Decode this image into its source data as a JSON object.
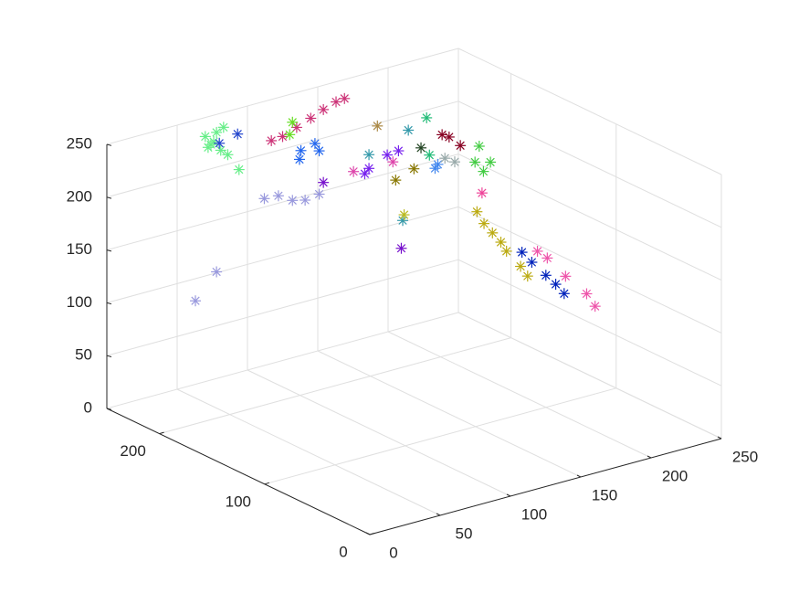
{
  "chart_data": {
    "type": "scatter3d",
    "xlim": [
      0,
      250
    ],
    "ylim": [
      0,
      250
    ],
    "zlim": [
      0,
      250
    ],
    "xticks": [
      0,
      50,
      100,
      150,
      200,
      250
    ],
    "yticks": [
      0,
      100,
      200
    ],
    "zticks": [
      0,
      50,
      100,
      150,
      200,
      250
    ],
    "grid": true,
    "series": [
      {
        "color": "#66ee88",
        "x": [
          70,
          74,
          78,
          83,
          72,
          76,
          81,
          86,
          94
        ],
        "y": [
          250,
          250,
          250,
          250,
          250,
          250,
          250,
          250,
          250
        ],
        "z": [
          232,
          223,
          233,
          236,
          221,
          225,
          215,
          209,
          192
        ]
      },
      {
        "color": "#2244cc",
        "x": [
          80,
          93
        ],
        "y": [
          250,
          250
        ],
        "z": [
          222,
          226
        ]
      },
      {
        "color": "#cc3377",
        "x": [
          117,
          125,
          135,
          145,
          154,
          163,
          169
        ],
        "y": [
          250,
          250,
          250,
          250,
          250,
          250,
          250
        ],
        "z": [
          211,
          212,
          217,
          222,
          227,
          231,
          232
        ]
      },
      {
        "color": "#66dd22",
        "x": [
          132,
          130
        ],
        "y": [
          250,
          250
        ],
        "z": [
          223,
          212
        ]
      },
      {
        "color": "#2266ee",
        "x": [
          148,
          138,
          151,
          137
        ],
        "y": [
          250,
          250,
          250,
          250
        ],
        "z": [
          197,
          194,
          189,
          186
        ]
      },
      {
        "color": "#9999dd",
        "x": [
          112,
          122,
          132,
          141,
          151,
          63,
          78
        ],
        "y": [
          250,
          250,
          250,
          250,
          250,
          250,
          250
        ],
        "z": [
          158,
          157,
          149,
          146,
          148,
          79,
          101
        ]
      },
      {
        "color": "#7711cc",
        "x": [
          154,
          172
        ],
        "y": [
          250,
          200
        ],
        "z": [
          158,
          113
        ]
      },
      {
        "color": "#aa8844",
        "x": [
          155
        ],
        "y": [
          200
        ],
        "z": [
          235
        ]
      },
      {
        "color": "#3399aa",
        "x": [
          149,
          177,
          173
        ],
        "y": [
          200,
          200,
          200
        ],
        "z": [
          210,
          223,
          139
        ]
      },
      {
        "color": "#dd44aa",
        "x": [
          138,
          166
        ],
        "y": [
          200,
          200
        ],
        "z": [
          198,
          197
        ]
      },
      {
        "color": "#7722ee",
        "x": [
          146,
          149,
          170,
          162
        ],
        "y": [
          200,
          200,
          200,
          200
        ],
        "z": [
          193,
          197,
          206,
          205
        ]
      },
      {
        "color": "#22bb77",
        "x": [
          190,
          192
        ],
        "y": [
          200,
          200
        ],
        "z": [
          230,
          194
        ]
      },
      {
        "color": "#880022",
        "x": [
          201,
          206,
          214
        ],
        "y": [
          200,
          200,
          200
        ],
        "z": [
          210,
          206,
          195
        ]
      },
      {
        "color": "#224422",
        "x": [
          186
        ],
        "y": [
          200
        ],
        "z": [
          203
        ]
      },
      {
        "color": "#887700",
        "x": [
          181,
          168
        ],
        "y": [
          200,
          200
        ],
        "z": [
          185,
          179
        ]
      },
      {
        "color": "#4488ee",
        "x": [
          196,
          198
        ],
        "y": [
          200,
          200
        ],
        "z": [
          180,
          183
        ]
      },
      {
        "color": "#99aaaa",
        "x": [
          210,
          203
        ],
        "y": [
          200,
          200
        ],
        "z": [
          181,
          187
        ]
      },
      {
        "color": "#bbbb22",
        "x": [
          174
        ],
        "y": [
          200
        ],
        "z": [
          144
        ]
      },
      {
        "color": "#44cc44",
        "x": [
          190,
          193,
          187,
          198
        ],
        "y": [
          150,
          150,
          150,
          150
        ],
        "z": [
          227,
          202,
          213,
          209
        ]
      },
      {
        "color": "#ee4499",
        "x": [
          192
        ],
        "y": [
          150
        ],
        "z": [
          182
        ]
      },
      {
        "color": "#bbaa11",
        "x": [
          151,
          156,
          162,
          168,
          172,
          182,
          187
        ],
        "y": [
          100,
          100,
          100,
          100,
          100,
          100,
          100
        ],
        "z": [
          203,
          190,
          179,
          168,
          158,
          140,
          129
        ]
      },
      {
        "color": "#0022bb",
        "x": [
          183,
          190,
          200,
          207,
          213
        ],
        "y": [
          100,
          100,
          100,
          100,
          100
        ],
        "z": [
          153,
          141,
          125,
          114,
          103
        ]
      },
      {
        "color": "#ee55aa",
        "x": [
          194,
          201,
          214,
          229,
          235
        ],
        "y": [
          100,
          100,
          100,
          100,
          100
        ],
        "z": [
          150,
          141,
          119,
          97,
          83
        ]
      }
    ]
  }
}
